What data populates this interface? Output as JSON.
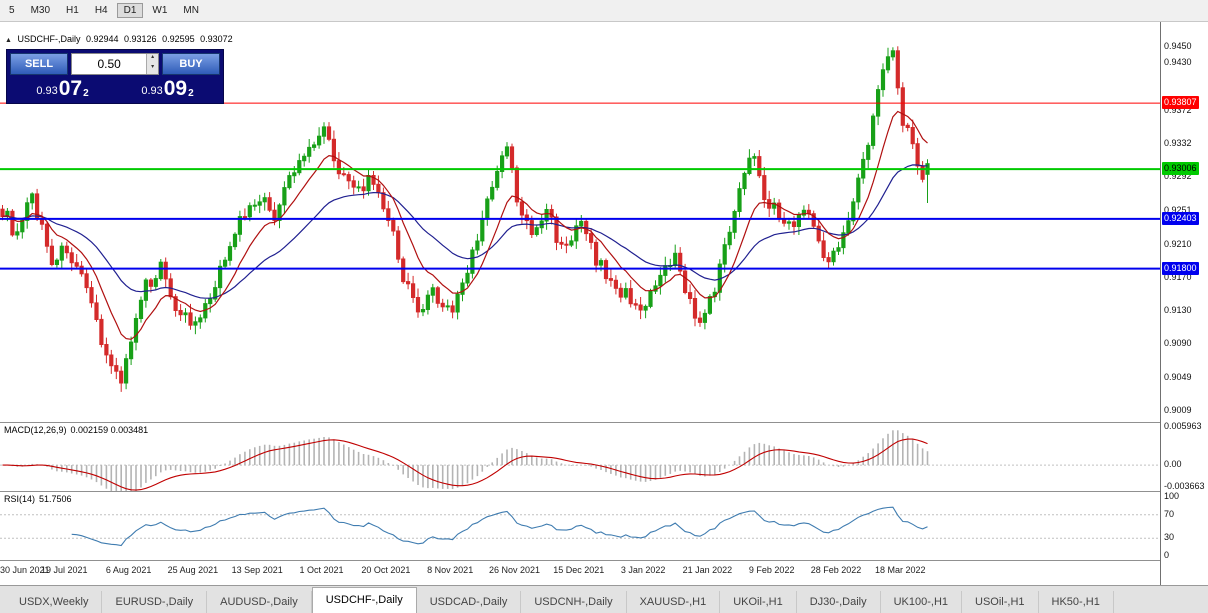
{
  "toolbar": {
    "timeframes": [
      "5",
      "M30",
      "H1",
      "H4",
      "D1",
      "W1",
      "MN"
    ],
    "active": "D1"
  },
  "icons": {
    "collapse_panel": "▲",
    "lot_up": "▴",
    "lot_down": "▾"
  },
  "chart": {
    "title": "USDCHF-,Daily",
    "ohlc": {
      "open": "0.92944",
      "high": "0.93126",
      "low": "0.92595",
      "close": "0.93072"
    },
    "trade_panel": {
      "sell_label": "SELL",
      "buy_label": "BUY",
      "lot_size": "0.50",
      "sell_price": {
        "small": "0.93",
        "big": "07",
        "sup": "2"
      },
      "buy_price": {
        "small": "0.93",
        "big": "09",
        "sup": "2"
      }
    },
    "price_axis_ticks": [
      "0.9450",
      "0.9430",
      "0.9372",
      "0.9332",
      "0.9292",
      "0.9251",
      "0.9210",
      "0.9170",
      "0.9130",
      "0.9090",
      "0.9049",
      "0.9009"
    ],
    "h_lines": [
      {
        "price": 0.93807,
        "label": "0.93807",
        "color": "#ff0000",
        "text": "#ffffff",
        "width": 1
      },
      {
        "price": 0.93006,
        "label": "0.93006",
        "color": "#00ca00",
        "text": "#000000",
        "width": 2
      },
      {
        "price": 0.92403,
        "label": "0.92403",
        "color": "#0000ee",
        "text": "#ffffff",
        "width": 2
      },
      {
        "price": 0.918,
        "label": "0.91800",
        "color": "#0000ee",
        "text": "#ffffff",
        "width": 2
      }
    ],
    "scale": {
      "price_top": 0.9479,
      "price_bottom": 0.8994
    }
  },
  "macd": {
    "label": "MACD(12,26,9)",
    "values": "0.002159 0.003481",
    "axis": [
      "0.005963",
      "0.00",
      "-0.003663"
    ]
  },
  "rsi": {
    "label": "RSI(14)",
    "value": "51.7506",
    "axis": [
      "100",
      "70",
      "30",
      "0"
    ]
  },
  "dates": [
    "30 Jun 2021",
    "19 Jul 2021",
    "6 Aug 2021",
    "25 Aug 2021",
    "13 Sep 2021",
    "1 Oct 2021",
    "20 Oct 2021",
    "8 Nov 2021",
    "26 Nov 2021",
    "15 Dec 2021",
    "3 Jan 2022",
    "21 Jan 2022",
    "9 Feb 2022",
    "28 Feb 2022",
    "18 Mar 2022"
  ],
  "tabs": {
    "items": [
      "USDX,Weekly",
      "EURUSD-,Daily",
      "AUDUSD-,Daily",
      "USDCHF-,Daily",
      "USDCAD-,Daily",
      "USDCNH-,Daily",
      "XAUUSD-,H1",
      "UKOil-,H1",
      "DJ30-,Daily",
      "UK100-,H1",
      "USOil-,H1",
      "HK50-,H1"
    ],
    "active_index": 3
  },
  "chart_data": {
    "type": "candlestick",
    "symbol": "USDCHF",
    "timeframe": "Daily",
    "num_candles": 188,
    "y_range": [
      0.8994,
      0.9479
    ],
    "x_labels": [
      "30 Jun 2021",
      "19 Jul 2021",
      "6 Aug 2021",
      "25 Aug 2021",
      "13 Sep 2021",
      "1 Oct 2021",
      "20 Oct 2021",
      "8 Nov 2021",
      "26 Nov 2021",
      "15 Dec 2021",
      "3 Jan 2022",
      "21 Jan 2022",
      "9 Feb 2022",
      "28 Feb 2022",
      "18 Mar 2022"
    ],
    "last_candle": {
      "open": 0.92944,
      "high": 0.93126,
      "low": 0.92595,
      "close": 0.93072
    },
    "anchors": [
      [
        0,
        0.9252
      ],
      [
        3,
        0.9218
      ],
      [
        6,
        0.9268
      ],
      [
        10,
        0.919
      ],
      [
        13,
        0.9205
      ],
      [
        16,
        0.9165
      ],
      [
        19,
        0.9115
      ],
      [
        22,
        0.906
      ],
      [
        24,
        0.9048
      ],
      [
        26,
        0.9092
      ],
      [
        29,
        0.9158
      ],
      [
        32,
        0.9183
      ],
      [
        35,
        0.9135
      ],
      [
        39,
        0.9108
      ],
      [
        43,
        0.9155
      ],
      [
        46,
        0.9215
      ],
      [
        49,
        0.9248
      ],
      [
        52,
        0.9268
      ],
      [
        55,
        0.9242
      ],
      [
        58,
        0.9288
      ],
      [
        62,
        0.9328
      ],
      [
        65,
        0.9352
      ],
      [
        68,
        0.9302
      ],
      [
        71,
        0.9272
      ],
      [
        74,
        0.9286
      ],
      [
        78,
        0.9242
      ],
      [
        81,
        0.9172
      ],
      [
        84,
        0.9122
      ],
      [
        87,
        0.915
      ],
      [
        91,
        0.9128
      ],
      [
        94,
        0.918
      ],
      [
        97,
        0.924
      ],
      [
        100,
        0.9295
      ],
      [
        102,
        0.933
      ],
      [
        104,
        0.9262
      ],
      [
        107,
        0.9218
      ],
      [
        110,
        0.9252
      ],
      [
        113,
        0.9205
      ],
      [
        117,
        0.9232
      ],
      [
        120,
        0.9192
      ],
      [
        123,
        0.9162
      ],
      [
        126,
        0.9148
      ],
      [
        130,
        0.9132
      ],
      [
        133,
        0.9168
      ],
      [
        136,
        0.9192
      ],
      [
        139,
        0.9142
      ],
      [
        141,
        0.9108
      ],
      [
        143,
        0.9138
      ],
      [
        146,
        0.9202
      ],
      [
        149,
        0.9282
      ],
      [
        152,
        0.9322
      ],
      [
        154,
        0.9272
      ],
      [
        156,
        0.9252
      ],
      [
        159,
        0.9232
      ],
      [
        162,
        0.9252
      ],
      [
        165,
        0.9222
      ],
      [
        167,
        0.9182
      ],
      [
        169,
        0.9212
      ],
      [
        172,
        0.9262
      ],
      [
        175,
        0.9332
      ],
      [
        178,
        0.9422
      ],
      [
        180,
        0.9452
      ],
      [
        182,
        0.9362
      ],
      [
        184,
        0.9332
      ],
      [
        186,
        0.9292
      ],
      [
        187,
        0.9307
      ]
    ]
  },
  "colors": {
    "up": "#18a018",
    "down": "#d42a2a",
    "ma_fast": "#b01010",
    "ma_slow": "#202090",
    "macd_hist": "#b4b4b4",
    "macd_signal": "#c00000",
    "rsi_line": "#3f7cb0",
    "level_dashed": "#c0c0c0"
  }
}
